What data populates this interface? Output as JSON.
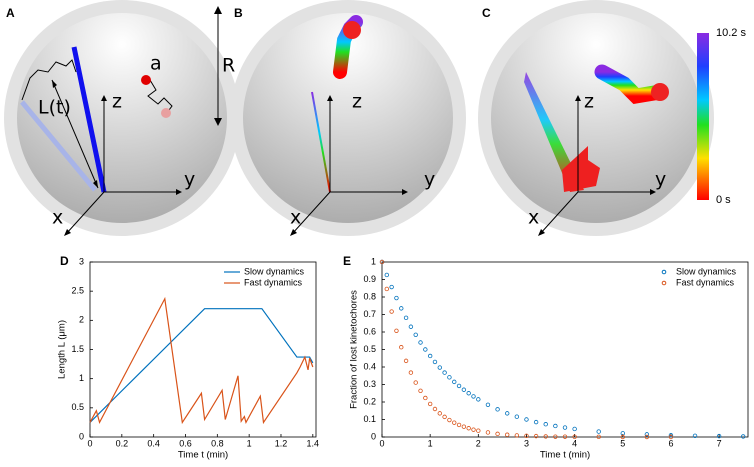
{
  "panels": [
    {
      "label": "A",
      "texts": {
        "a": "a",
        "R": "R",
        "L": "L(t)",
        "z": "z",
        "y": "y",
        "x": "x"
      }
    },
    {
      "label": "B",
      "texts": {
        "z": "z",
        "y": "y",
        "x": "x"
      }
    },
    {
      "label": "C",
      "texts": {
        "z": "z",
        "y": "y",
        "x": "x"
      }
    }
  ],
  "colorbar": {
    "max_label": "10.2 s",
    "min_label": "0 s"
  },
  "chart_data": [
    {
      "type": "line",
      "panel_label": "D",
      "x_label": "Time t (min)",
      "y_label": "Length L (μm)",
      "xlim": [
        0,
        1.42
      ],
      "xticks": [
        0,
        0.2,
        0.4,
        0.6,
        0.8,
        1,
        1.2,
        1.4
      ],
      "ylim": [
        0,
        3
      ],
      "yticks": [
        0,
        0.5,
        1,
        1.5,
        2,
        2.5,
        3
      ],
      "legend": "top-right",
      "series": [
        {
          "name": "Slow dynamics",
          "color": "#0072bd",
          "x": [
            0,
            0.72,
            1.08,
            1.3,
            1.38,
            1.4
          ],
          "values": [
            0.25,
            2.2,
            2.2,
            1.37,
            1.37,
            1.27
          ]
        },
        {
          "name": "Fast dynamics",
          "color": "#d95319",
          "x": [
            0,
            0.04,
            0.06,
            0.47,
            0.58,
            0.7,
            0.72,
            0.83,
            0.85,
            0.93,
            0.95,
            0.97,
            0.98,
            1.07,
            1.09,
            1.3,
            1.32,
            1.35,
            1.37,
            1.38,
            1.4
          ],
          "values": [
            0.25,
            0.45,
            0.25,
            2.37,
            0.25,
            0.75,
            0.3,
            0.8,
            0.3,
            1.05,
            0.27,
            0.35,
            0.25,
            0.7,
            0.25,
            1.1,
            1.2,
            1.37,
            1.15,
            1.35,
            1.2
          ]
        }
      ]
    },
    {
      "type": "scatter",
      "panel_label": "E",
      "x_label": "Time t (min)",
      "y_label": "Fraction of lost kinetochores",
      "xlim": [
        0,
        7.6
      ],
      "xticks": [
        0,
        1,
        2,
        3,
        4,
        5,
        6,
        7
      ],
      "ylim": [
        0,
        1
      ],
      "yticks": [
        0,
        0.1,
        0.2,
        0.3,
        0.4,
        0.5,
        0.6,
        0.7,
        0.8,
        0.9,
        1
      ],
      "legend": "top-right",
      "series": [
        {
          "name": "Slow dynamics",
          "color": "#0072bd",
          "x": [
            0,
            0.1,
            0.2,
            0.3,
            0.4,
            0.5,
            0.6,
            0.7,
            0.8,
            0.9,
            1,
            1.1,
            1.2,
            1.3,
            1.4,
            1.5,
            1.6,
            1.7,
            1.8,
            1.9,
            2,
            2.2,
            2.4,
            2.6,
            2.8,
            3,
            3.2,
            3.4,
            3.6,
            3.8,
            4,
            4.5,
            5,
            5.5,
            6,
            6.5,
            7,
            7.5
          ],
          "values": [
            1,
            0.926,
            0.857,
            0.794,
            0.735,
            0.681,
            0.63,
            0.584,
            0.54,
            0.5,
            0.463,
            0.429,
            0.397,
            0.368,
            0.341,
            0.315,
            0.292,
            0.27,
            0.25,
            0.232,
            0.215,
            0.184,
            0.158,
            0.135,
            0.116,
            0.1,
            0.085,
            0.073,
            0.063,
            0.054,
            0.046,
            0.031,
            0.021,
            0.015,
            0.01,
            0.007,
            0.005,
            0.003
          ]
        },
        {
          "name": "Fast dynamics",
          "color": "#d95319",
          "x": [
            0,
            0.1,
            0.2,
            0.3,
            0.4,
            0.5,
            0.6,
            0.7,
            0.8,
            0.9,
            1,
            1.1,
            1.2,
            1.3,
            1.4,
            1.5,
            1.6,
            1.7,
            1.8,
            1.9,
            2,
            2.2,
            2.4,
            2.6,
            2.8,
            3,
            3.2,
            3.4,
            3.6,
            3.8,
            4,
            4.5,
            5,
            5.5,
            6
          ],
          "values": [
            1,
            0.846,
            0.717,
            0.607,
            0.513,
            0.435,
            0.368,
            0.311,
            0.264,
            0.223,
            0.189,
            0.16,
            0.135,
            0.115,
            0.097,
            0.082,
            0.069,
            0.059,
            0.05,
            0.042,
            0.036,
            0.026,
            0.018,
            0.013,
            0.009,
            0.007,
            0.005,
            0.003,
            0.002,
            0.002,
            0.001,
            0.001,
            0,
            0,
            0
          ]
        }
      ]
    }
  ]
}
